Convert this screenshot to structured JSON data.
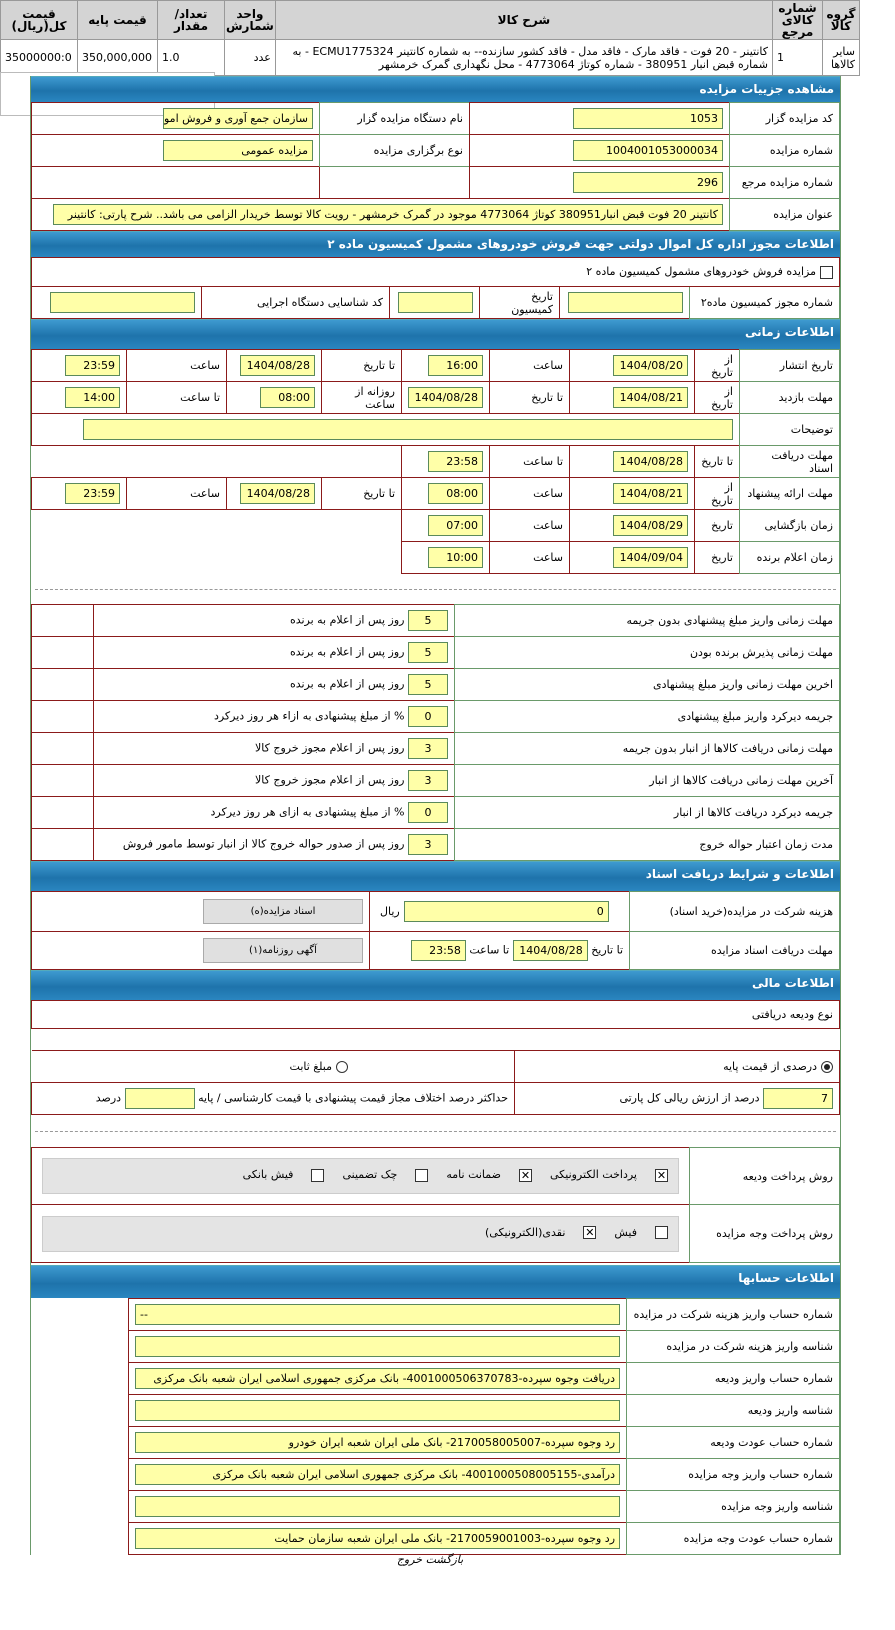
{
  "items_table": {
    "headers": [
      "گروه کالا",
      "شماره کالای مرجع",
      "شرح کالا",
      "واحد شمارش",
      "تعداد/مقدار",
      "قیمت پایه",
      "قیمت کل(ریال)"
    ],
    "row": {
      "group": "سایر کالاها",
      "ref": "1",
      "desc": "کانتینر - 20 فوت - فاقد مارک - فاقد مدل - فاقد کشور سازنده-- به شماره کانتینر ECMU1775324 - به شماره قبض انبار 380951 - شماره کوتاژ 4773064 - محل نگهداری گمرک خرمشهر",
      "unit": "عدد",
      "qty": "1.0",
      "base_price": "350,000,000",
      "total": "35000000:0"
    }
  },
  "details": {
    "title": "مشاهده جزییات مزایده",
    "code_label": "کد مزایده گزار",
    "code": "1053",
    "org_label": "نام دستگاه مزایده گزار",
    "org": "سازمان جمع آوری و فروش امو",
    "number_label": "شماره مزایده",
    "number": "1004001053000034",
    "type_label": "نوع برگزاری مزایده",
    "type": "مزایده عمومی",
    "ref_label": "شماره مزایده مرجع",
    "ref": "296",
    "subject_label": "عنوان مزایده",
    "subject": "کانتینر 20 فوت قبض انبار380951 کوتاژ 4773064 موجود در گمرک خرمشهر - رویت کالا توسط خریدار الزامی می باشد.. شرح پارتی: کانتینر"
  },
  "permit": {
    "title": "اطلاعات مجوز اداره کل اموال دولتی جهت فروش خودروهای مشمول کمیسیون ماده ۲",
    "checkbox_label": "مزایده فروش خودروهای مشمول کمیسیون ماده ۲",
    "permit_no_label": "شماره مجوز کمیسیون ماده۲",
    "permit_no": "",
    "date_label": "تاریخ کمیسیون",
    "date": "",
    "exec_label": "کد شناسایی دستگاه اجرایی",
    "exec": ""
  },
  "timing": {
    "title": "اطلاعات زمانی",
    "publish": {
      "label": "تاریخ انتشار",
      "from_label": "از تاریخ",
      "from": "1404/08/20",
      "time_label": "ساعت",
      "time": "16:00",
      "to_label": "تا تاریخ",
      "to": "1404/08/28",
      "time2_label": "ساعت",
      "time2": "23:59"
    },
    "visit": {
      "label": "مهلت بازدید",
      "from_label": "از تاریخ",
      "from": "1404/08/21",
      "to_label": "تا تاریخ",
      "to": "1404/08/28",
      "daily_label": "روزانه از ساعت",
      "daily": "08:00",
      "until_label": "تا ساعت",
      "until": "14:00"
    },
    "notes_label": "توضیحات",
    "notes": "",
    "docs": {
      "label": "مهلت دریافت اسناد",
      "to_label": "تا تاریخ",
      "to": "1404/08/28",
      "time_label": "تا ساعت",
      "time": "23:58"
    },
    "offer": {
      "label": "مهلت ارائه پیشنهاد",
      "from_label": "از تاریخ",
      "from": "1404/08/21",
      "time_label": "ساعت",
      "time": "08:00",
      "to_label": "تا تاریخ",
      "to": "1404/08/28",
      "time2_label": "ساعت",
      "time2": "23:59"
    },
    "opening": {
      "label": "زمان بازگشایی",
      "date_label": "تاریخ",
      "date": "1404/08/29",
      "time_label": "ساعت",
      "time": "07:00"
    },
    "winner": {
      "label": "زمان اعلام برنده",
      "date_label": "تاریخ",
      "date": "1404/09/04",
      "time_label": "ساعت",
      "time": "10:00"
    }
  },
  "penalties": [
    {
      "label": "مهلت زمانی واریز مبلغ پیشنهادی بدون جریمه",
      "value": "5",
      "suffix": "روز پس از اعلام به برنده"
    },
    {
      "label": "مهلت زمانی پذیرش برنده بودن",
      "value": "5",
      "suffix": "روز پس از اعلام به برنده"
    },
    {
      "label": "اخرین مهلت زمانی واریز مبلغ پیشنهادی",
      "value": "5",
      "suffix": "روز پس از اعلام به برنده"
    },
    {
      "label": "جریمه دیرکرد واریز مبلغ پیشنهادی",
      "value": "0",
      "suffix": "% از مبلغ پیشنهادی به ازاء هر روز دیرکرد"
    },
    {
      "label": "مهلت زمانی دریافت کالاها از انبار بدون جریمه",
      "value": "3",
      "suffix": "روز پس از اعلام مجوز خروج کالا"
    },
    {
      "label": "آخرین مهلت زمانی دریافت کالاها از انبار",
      "value": "3",
      "suffix": "روز پس از اعلام مجوز خروج کالا"
    },
    {
      "label": "جریمه دیرکرد دریافت کالاها از انبار",
      "value": "0",
      "suffix": "% از مبلغ پیشنهادی به ازای هر روز دیرکرد"
    },
    {
      "label": "مدت زمان اعتبار حواله خروج",
      "value": "3",
      "suffix": "روز پس از صدور حواله خروج کالا از انبار توسط مامور فروش"
    }
  ],
  "documents": {
    "title": "اطلاعات و شرایط دریافت اسناد",
    "fee_label": "هزینه شرکت در مزایده(خرید اسناد)",
    "fee": "0",
    "fee_unit": "ریال",
    "deadline_label": "مهلت دریافت اسناد مزایده",
    "to_label": "تا تاریخ",
    "to": "1404/08/28",
    "time_label": "تا ساعت",
    "time": "23:58",
    "docs_button": "اسناد مزایده(ه)",
    "ad_button": "آگهی روزنامه(۱)"
  },
  "financial": {
    "title": "اطلاعات مالی",
    "deposit_type_label": "نوع ودیعه دریافتی",
    "percent_option": "درصدی از قیمت پایه",
    "fixed_option": "مبلغ ثابت",
    "percent": "7",
    "percent_suffix": "درصد از ارزش ریالی کل پارتی",
    "max_diff_label": "حداکثر درصد اختلاف مجاز قیمت پیشنهادی با قیمت کارشناسی / پایه",
    "max_diff": "",
    "max_diff_unit": "درصد",
    "deposit_method_label": "روش پرداخت ودیعه",
    "deposit_methods": [
      {
        "label": "پرداخت الکترونیکی",
        "checked": true
      },
      {
        "label": "ضمانت نامه",
        "checked": true
      },
      {
        "label": "چک تضمینی",
        "checked": false
      },
      {
        "label": "فیش بانکی",
        "checked": false
      }
    ],
    "payment_method_label": "روش پرداخت وجه مزایده",
    "payment_methods": [
      {
        "label": "فیش",
        "checked": false
      },
      {
        "label": "نقدی(الکترونیکی)",
        "checked": true
      }
    ]
  },
  "accounts": {
    "title": "اطلاعات حسابها",
    "rows": [
      {
        "label": "شماره حساب واریز هزینه شرکت در مزایده",
        "value": "--"
      },
      {
        "label": "شناسه واریز هزینه شرکت در مزایده",
        "value": ""
      },
      {
        "label": "شماره حساب واریز ودیعه",
        "value": "دریافت وجوه سپرده-4001000506370783- بانک مرکزی جمهوری اسلامی ایران شعبه بانک مرکزی"
      },
      {
        "label": "شناسه واریز ودیعه",
        "value": ""
      },
      {
        "label": "شماره حساب عودت ودیعه",
        "value": "رد وجوه سپرده-2170058005007- بانک ملی ایران شعبه ایران خودرو"
      },
      {
        "label": "شماره حساب واریز وجه مزایده",
        "value": "درآمدی-4001000508005155- بانک مرکزی جمهوری اسلامی ایران شعبه بانک مرکزی"
      },
      {
        "label": "شناسه واریز وجه مزایده",
        "value": ""
      },
      {
        "label": "شماره حساب عودت وجه مزایده",
        "value": "رد وجوه سپرده-2170059001003- بانک ملی ایران شعبه سازمان حمایت"
      }
    ]
  },
  "footer": {
    "back_link": "بازگشت خروج"
  },
  "colors": {
    "header": "#1e73ab",
    "input_bg": "#ffffa8",
    "row_border": "#8b1a1a"
  }
}
